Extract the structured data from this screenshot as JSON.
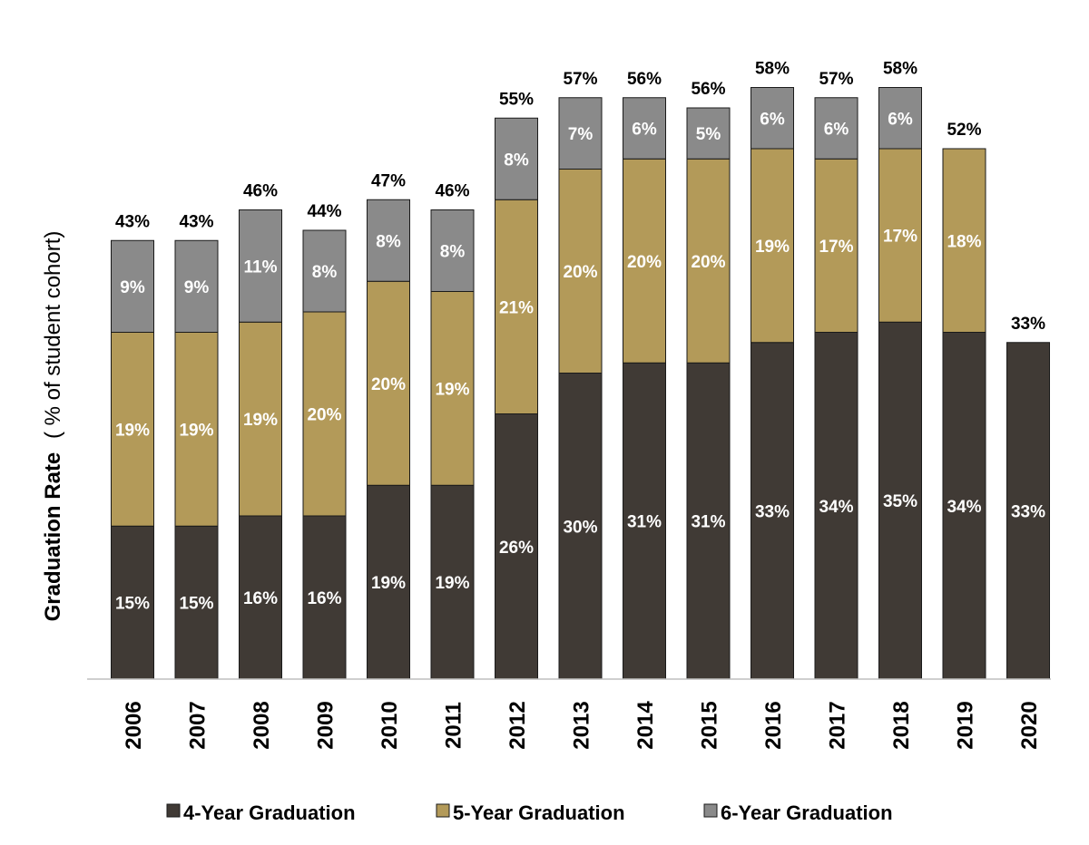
{
  "chart_data": {
    "type": "bar",
    "stacked": true,
    "title": "",
    "xlabel": "",
    "ylabel": "Graduation Rate",
    "ylabel_suffix": "( % of student cohort)",
    "ylim": [
      0,
      62
    ],
    "grid": false,
    "legend_position": "bottom",
    "categories": [
      "2006",
      "2007",
      "2008",
      "2009",
      "2010",
      "2011",
      "2012",
      "2013",
      "2014",
      "2015",
      "2016",
      "2017",
      "2018",
      "2019",
      "2020"
    ],
    "series": [
      {
        "name": "4-Year Graduation",
        "color": "#403a35",
        "values": [
          15,
          15,
          16,
          16,
          19,
          19,
          26,
          30,
          31,
          31,
          33,
          34,
          35,
          34,
          33
        ],
        "labels": [
          "15%",
          "15%",
          "16%",
          "16%",
          "19%",
          "19%",
          "26%",
          "30%",
          "31%",
          "31%",
          "33%",
          "34%",
          "35%",
          "34%",
          "33%"
        ]
      },
      {
        "name": "5-Year Graduation",
        "color": "#b39a59",
        "values": [
          19,
          19,
          19,
          20,
          20,
          19,
          21,
          20,
          20,
          20,
          19,
          17,
          17,
          18,
          null
        ],
        "labels": [
          "19%",
          "19%",
          "19%",
          "20%",
          "20%",
          "19%",
          "21%",
          "20%",
          "20%",
          "20%",
          "19%",
          "17%",
          "17%",
          "18%",
          ""
        ]
      },
      {
        "name": "6-Year Graduation",
        "color": "#8a8a8a",
        "values": [
          9,
          9,
          11,
          8,
          8,
          8,
          8,
          7,
          6,
          5,
          6,
          6,
          6,
          null,
          null
        ],
        "labels": [
          "9%",
          "9%",
          "11%",
          "8%",
          "8%",
          "8%",
          "8%",
          "7%",
          "6%",
          "5%",
          "6%",
          "6%",
          "6%",
          "",
          ""
        ]
      }
    ],
    "totals": [
      43,
      43,
      46,
      44,
      47,
      46,
      55,
      57,
      56,
      56,
      58,
      57,
      58,
      52,
      33
    ],
    "total_labels": [
      "43%",
      "43%",
      "46%",
      "44%",
      "47%",
      "46%",
      "55%",
      "57%",
      "56%",
      "56%",
      "58%",
      "57%",
      "58%",
      "52%",
      "33%"
    ]
  }
}
